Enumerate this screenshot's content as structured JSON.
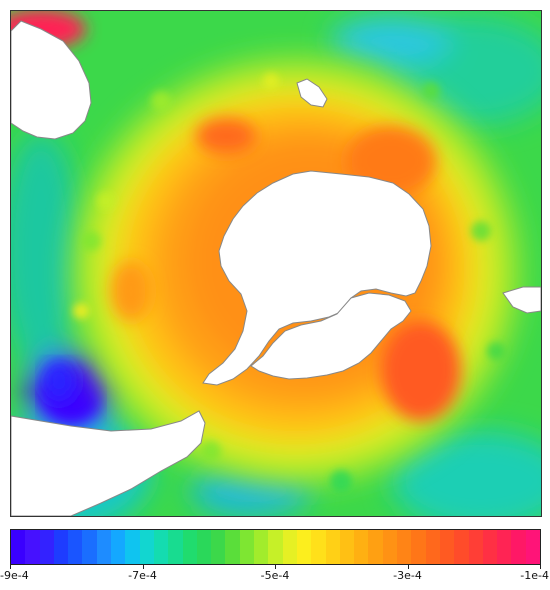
{
  "colorbar": {
    "colors": [
      "#3a00ff",
      "#4611ff",
      "#3322ff",
      "#1e3cff",
      "#1a55ff",
      "#1a6eff",
      "#1e8cff",
      "#14a8ff",
      "#0fc4f0",
      "#12d6d0",
      "#14dcb0",
      "#18dc90",
      "#20dc6e",
      "#2ad85a",
      "#3cd84a",
      "#5ade3a",
      "#7ee632",
      "#a2ec2c",
      "#c6f028",
      "#e6f024",
      "#fcee1e",
      "#ffe01a",
      "#ffd016",
      "#ffc014",
      "#ffb012",
      "#ffa012",
      "#ff9214",
      "#ff8416",
      "#ff7618",
      "#ff681c",
      "#ff5a22",
      "#ff4c2a",
      "#ff3e36",
      "#ff3044",
      "#ff2454",
      "#ff1866",
      "#ff1478"
    ],
    "ticks": [
      {
        "value": -9,
        "label": "-9e-4"
      },
      {
        "value": -7,
        "label": "-7e-4"
      },
      {
        "value": -5,
        "label": "-5e-4"
      },
      {
        "value": -3,
        "label": "-3e-4"
      },
      {
        "value": -1,
        "label": "-1e-4"
      }
    ],
    "range": [
      -9,
      -1
    ]
  },
  "map": {
    "land_color": "#ffffff",
    "coast_color": "#888888",
    "ocean_base": "#7ee632"
  }
}
